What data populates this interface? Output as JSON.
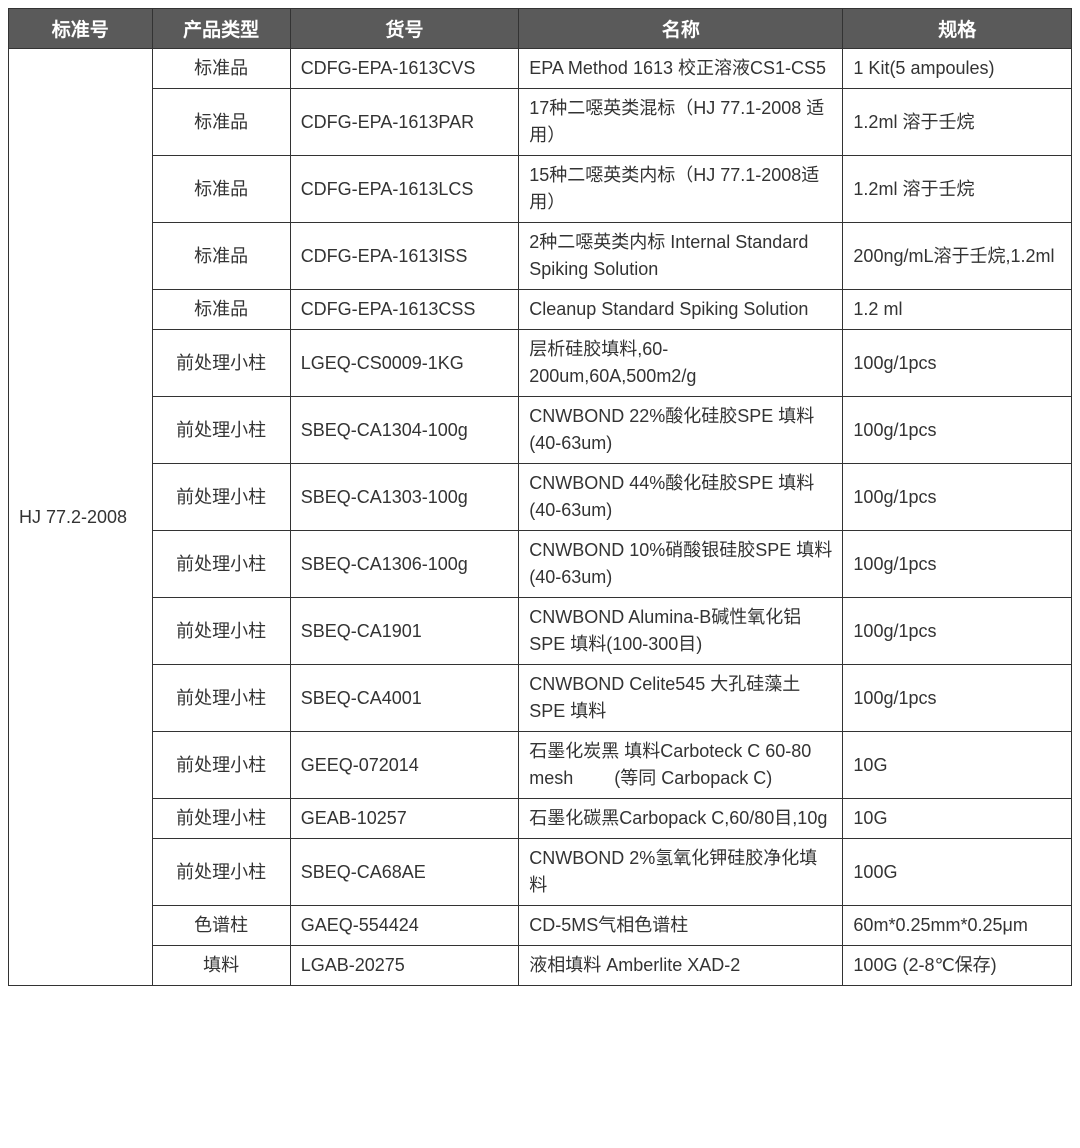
{
  "table": {
    "columns": [
      "标准号",
      "产品类型",
      "货号",
      "名称",
      "规格"
    ],
    "header_bg": "#5a5a5a",
    "header_color": "#ffffff",
    "border_color": "#333333",
    "text_color": "#333333",
    "font_size_header": 19,
    "font_size_cell": 18,
    "column_widths": [
      "13.5%",
      "13%",
      "21.5%",
      "30.5%",
      "21.5%"
    ],
    "standard_number": "HJ 77.2-2008",
    "rows": [
      {
        "type": "标准品",
        "code": "CDFG-EPA-1613CVS",
        "name": "EPA Method 1613 校正溶液CS1-CS5",
        "spec": "1 Kit(5 ampoules)"
      },
      {
        "type": "标准品",
        "code": "CDFG-EPA-1613PAR",
        "name": "17种二噁英类混标（HJ 77.1-2008 适用）",
        "spec": "1.2ml 溶于壬烷"
      },
      {
        "type": "标准品",
        "code": "CDFG-EPA-1613LCS",
        "name": "15种二噁英类内标（HJ 77.1-2008适用）",
        "spec": "1.2ml 溶于壬烷"
      },
      {
        "type": "标准品",
        "code": "CDFG-EPA-1613ISS",
        "name": "2种二噁英类内标 Internal Standard Spiking Solution",
        "spec": "200ng/mL溶于壬烷,1.2ml"
      },
      {
        "type": "标准品",
        "code": "CDFG-EPA-1613CSS",
        "name": "Cleanup Standard Spiking Solution",
        "spec": "1.2 ml"
      },
      {
        "type": "前处理小柱",
        "code": "LGEQ-CS0009-1KG",
        "name": "层析硅胶填料,60-200um,60A,500m2/g",
        "spec": "100g/1pcs"
      },
      {
        "type": "前处理小柱",
        "code": "SBEQ-CA1304-100g",
        "name": "CNWBOND 22%酸化硅胶SPE 填料(40-63um)",
        "spec": "100g/1pcs"
      },
      {
        "type": "前处理小柱",
        "code": "SBEQ-CA1303-100g",
        "name": "CNWBOND 44%酸化硅胶SPE 填料(40-63um)",
        "spec": "100g/1pcs"
      },
      {
        "type": "前处理小柱",
        "code": "SBEQ-CA1306-100g",
        "name": "CNWBOND 10%硝酸银硅胶SPE 填料(40-63um)",
        "spec": "100g/1pcs"
      },
      {
        "type": "前处理小柱",
        "code": "SBEQ-CA1901",
        "name": "CNWBOND Alumina-B碱性氧化铝 SPE 填料(100-300目)",
        "spec": "100g/1pcs"
      },
      {
        "type": "前处理小柱",
        "code": "SBEQ-CA4001",
        "name": "CNWBOND Celite545 大孔硅藻土 SPE 填料",
        "spec": "100g/1pcs"
      },
      {
        "type": "前处理小柱",
        "code": "GEEQ-072014",
        "name": "石墨化炭黑 填料Carboteck C 60-80 mesh　　 (等同 Carbopack C)",
        "spec": "10G"
      },
      {
        "type": "前处理小柱",
        "code": "GEAB-10257",
        "name": "石墨化碳黑Carbopack C,60/80目,10g",
        "spec": "10G"
      },
      {
        "type": "前处理小柱",
        "code": "SBEQ-CA68AE",
        "name": "CNWBOND 2%氢氧化钾硅胶净化填料",
        "spec": "100G"
      },
      {
        "type": "色谱柱",
        "code": "GAEQ-554424",
        "name": "CD-5MS气相色谱柱",
        "spec": "60m*0.25mm*0.25μm"
      },
      {
        "type": "填料",
        "code": "LGAB-20275",
        "name": "液相填料 Amberlite XAD-2",
        "spec": "100G (2-8℃保存)"
      }
    ]
  }
}
